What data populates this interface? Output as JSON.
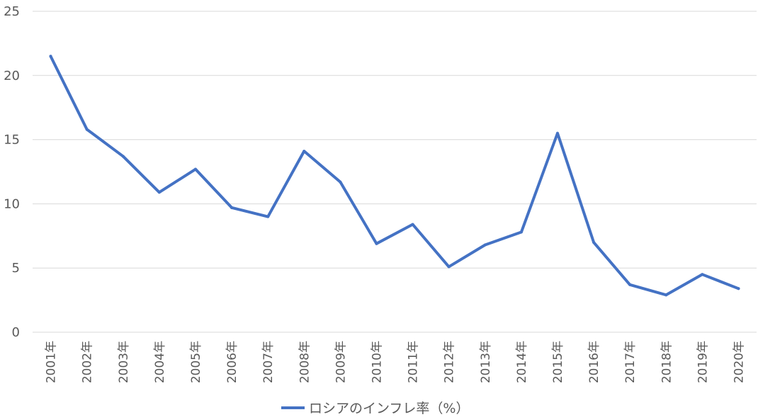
{
  "chart_data": {
    "type": "line",
    "categories": [
      "2001年",
      "2002年",
      "2003年",
      "2004年",
      "2005年",
      "2006年",
      "2007年",
      "2008年",
      "2009年",
      "2010年",
      "2011年",
      "2012年",
      "2013年",
      "2014年",
      "2015年",
      "2016年",
      "2017年",
      "2018年",
      "2019年",
      "2020年"
    ],
    "series": [
      {
        "name": "ロシアのインフレ率（%）",
        "color": "#4472C4",
        "values": [
          21.5,
          15.8,
          13.7,
          10.9,
          12.7,
          9.7,
          9.0,
          14.1,
          11.7,
          6.9,
          8.4,
          5.1,
          6.8,
          7.8,
          15.5,
          7.0,
          3.7,
          2.9,
          4.5,
          3.4
        ]
      }
    ],
    "ylim": [
      0,
      25
    ],
    "yticks": [
      "0",
      "5",
      "10",
      "15",
      "20",
      "25"
    ],
    "ytick_values": [
      0,
      5,
      10,
      15,
      20,
      25
    ],
    "grid": true,
    "legend_position": "bottom",
    "gridline_color": "#d9d9d9"
  }
}
